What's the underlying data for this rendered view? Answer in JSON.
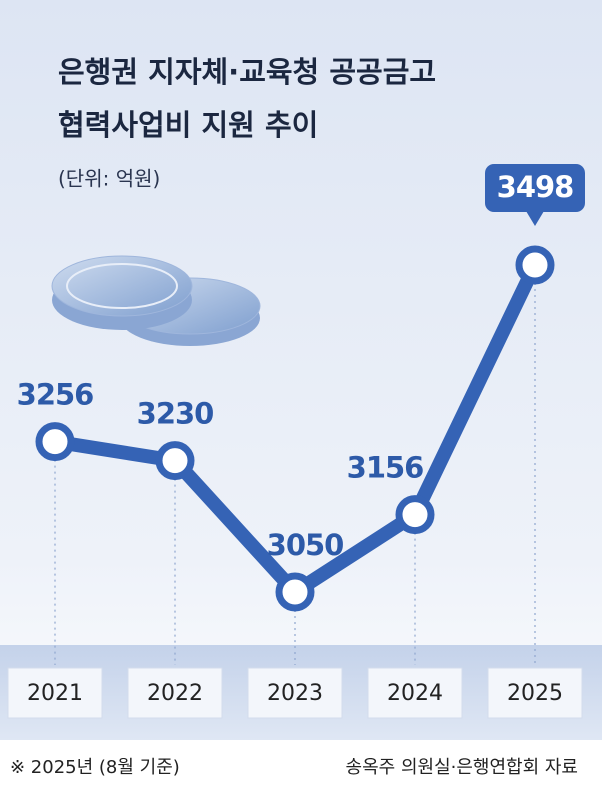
{
  "chart_data": {
    "type": "line",
    "title": [
      "은행권 지자체·교육청 공공금고",
      "협력사업비 지원 추이"
    ],
    "subtitle": "(단위: 억원)",
    "categories": [
      "2021",
      "2022",
      "2023",
      "2024",
      "2025"
    ],
    "values": [
      3256,
      3230,
      3050,
      3156,
      3498
    ],
    "color": "#3563b5",
    "note": "※ 2025년 (8월 기준)",
    "source": "송옥주 의원실·은행연합회 자료"
  }
}
